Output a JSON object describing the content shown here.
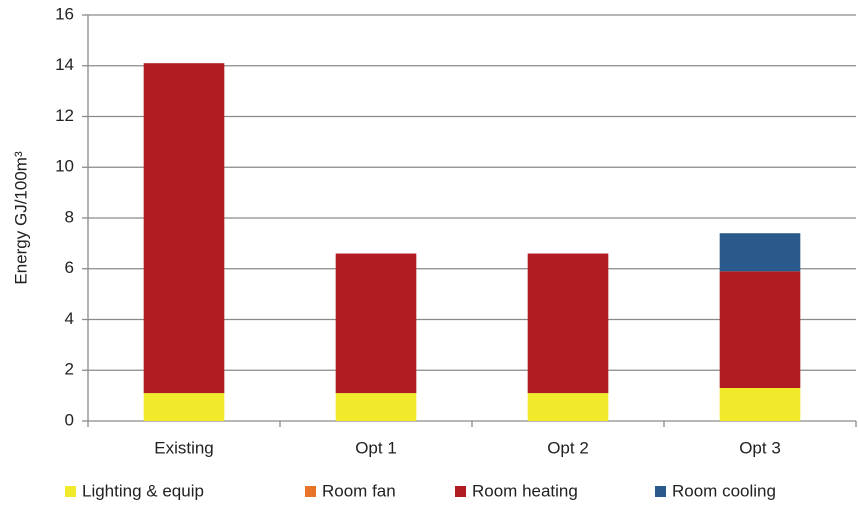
{
  "chart_data": {
    "type": "stacked_bar",
    "y_label": "Energy GJ/100m³",
    "categories": [
      "Existing",
      "Opt 1",
      "Opt 2",
      "Opt 3"
    ],
    "series": [
      {
        "name": "Lighting & equip",
        "color": "#f0ea2a",
        "values": [
          1.1,
          1.1,
          1.1,
          1.3
        ]
      },
      {
        "name": "Room fan",
        "color": "#e8742a",
        "values": [
          0,
          0,
          0,
          0
        ]
      },
      {
        "name": "Room heating",
        "color": "#b01c22",
        "values": [
          13.0,
          5.5,
          5.5,
          4.6
        ]
      },
      {
        "name": "Room cooling",
        "color": "#2a5a8c",
        "values": [
          0,
          0,
          0,
          1.5
        ]
      }
    ],
    "ylim": [
      0,
      16
    ],
    "yticks": [
      0,
      2,
      4,
      6,
      8,
      10,
      12,
      14,
      16
    ],
    "grid": true,
    "legend": "bottom"
  }
}
